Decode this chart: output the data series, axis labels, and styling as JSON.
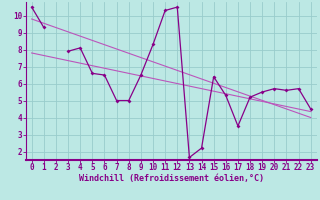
{
  "xlabel": "Windchill (Refroidissement éolien,°C)",
  "x": [
    0,
    1,
    2,
    3,
    4,
    5,
    6,
    7,
    8,
    9,
    10,
    11,
    12,
    13,
    14,
    15,
    16,
    17,
    18,
    19,
    20,
    21,
    22,
    23
  ],
  "main_line": [
    10.5,
    9.3,
    null,
    7.9,
    8.1,
    6.6,
    6.5,
    5.0,
    5.0,
    6.5,
    8.3,
    10.3,
    10.5,
    1.65,
    2.2,
    6.4,
    5.3,
    3.5,
    5.2,
    5.5,
    5.7,
    5.6,
    5.7,
    4.5
  ],
  "trend1_x": [
    0,
    23
  ],
  "trend1_y": [
    9.8,
    4.0
  ],
  "trend2_x": [
    0,
    23
  ],
  "trend2_y": [
    7.8,
    4.35
  ],
  "bg_color": "#bce8e4",
  "grid_color": "#99cccc",
  "line_color": "#880088",
  "trend_color": "#bb55bb",
  "axis_color": "#880088",
  "ylim": [
    1.5,
    10.8
  ],
  "xlim": [
    0,
    23
  ],
  "yticks": [
    2,
    3,
    4,
    5,
    6,
    7,
    8,
    9,
    10
  ],
  "xticks": [
    0,
    1,
    2,
    3,
    4,
    5,
    6,
    7,
    8,
    9,
    10,
    11,
    12,
    13,
    14,
    15,
    16,
    17,
    18,
    19,
    20,
    21,
    22,
    23
  ],
  "tick_fontsize": 5.5,
  "xlabel_fontsize": 6.0
}
